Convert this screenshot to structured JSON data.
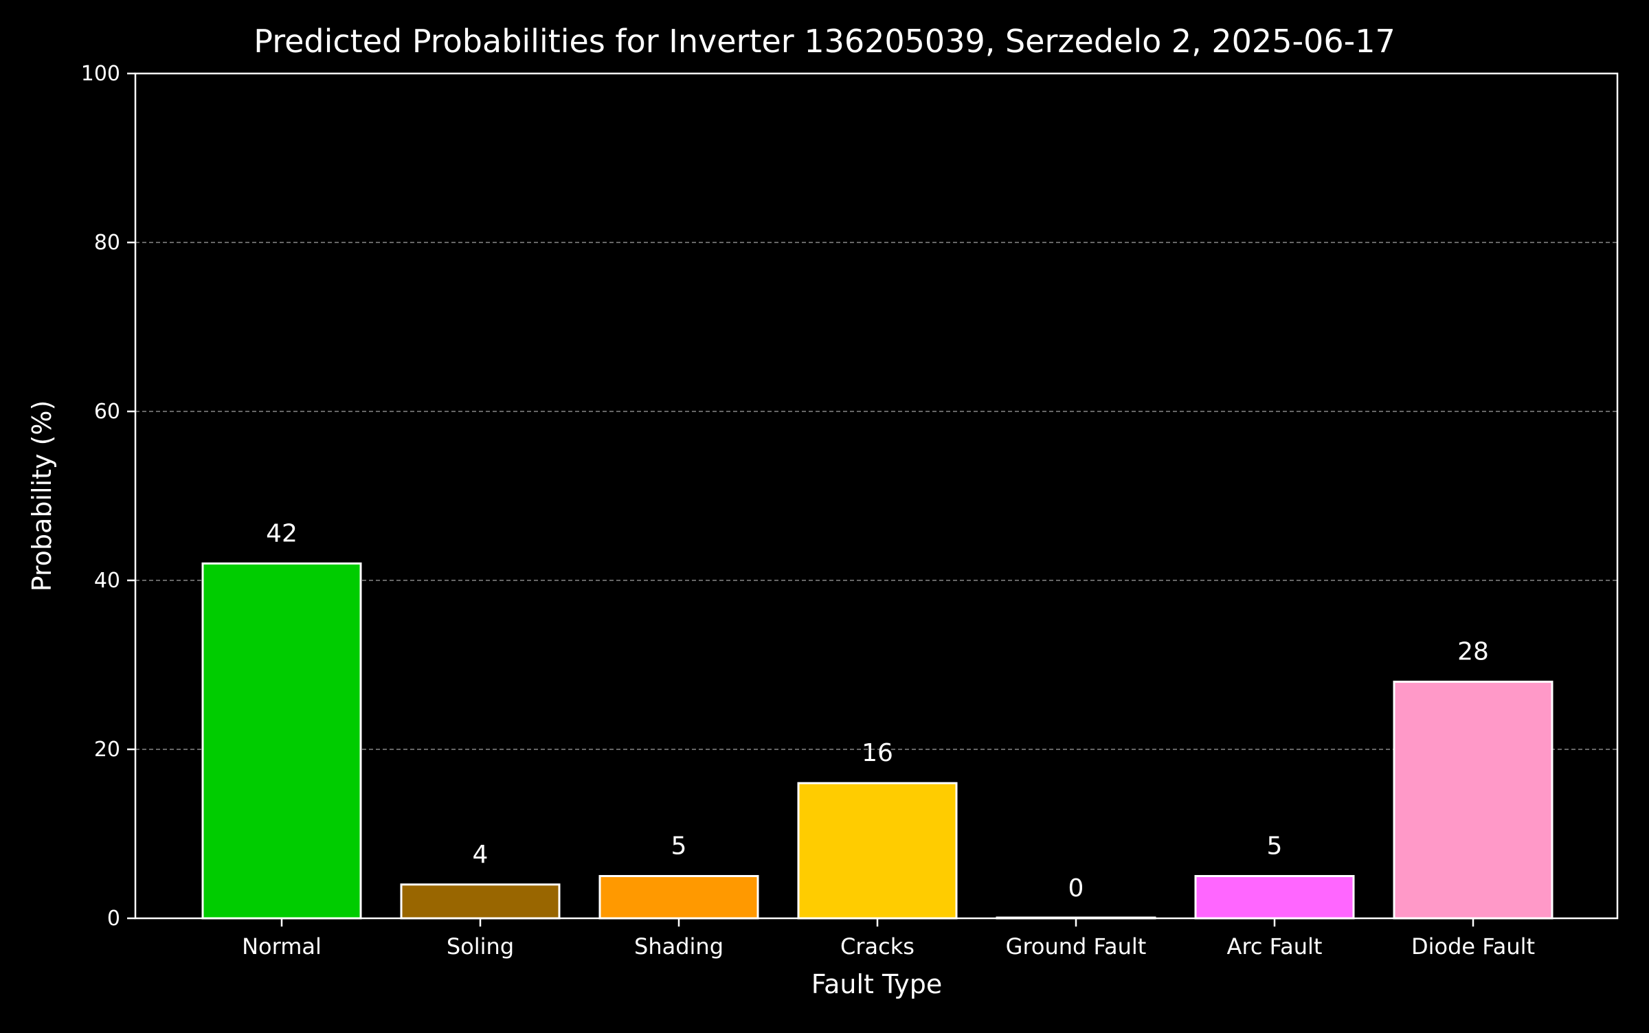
{
  "chart_data": {
    "type": "bar",
    "title": "Predicted Probabilities for Inverter 136205039, Serzedelo 2, 2025-06-17",
    "xlabel": "Fault Type",
    "ylabel": "Probability (%)",
    "categories": [
      "Normal",
      "Soling",
      "Shading",
      "Cracks",
      "Ground Fault",
      "Arc Fault",
      "Diode Fault"
    ],
    "values": [
      42,
      4,
      5,
      16,
      0,
      5,
      28
    ],
    "value_labels": [
      "42",
      "4",
      "5",
      "16",
      "0",
      "5",
      "28"
    ],
    "bar_colors": [
      "#00cc00",
      "#996600",
      "#ff9900",
      "#ffcc00",
      "#ffffff",
      "#ff66ff",
      "#ff99c8"
    ],
    "bar_edge_color": "#ffffff",
    "ylim": [
      0,
      100
    ],
    "yticks": [
      0,
      20,
      40,
      60,
      80,
      100
    ],
    "ytick_labels": [
      "0",
      "20",
      "40",
      "60",
      "80",
      "100"
    ],
    "grid": {
      "axis": "y",
      "style": "dashed",
      "color": "#888888"
    },
    "background": "#000000",
    "text_color": "#ffffff",
    "legend": "none"
  }
}
